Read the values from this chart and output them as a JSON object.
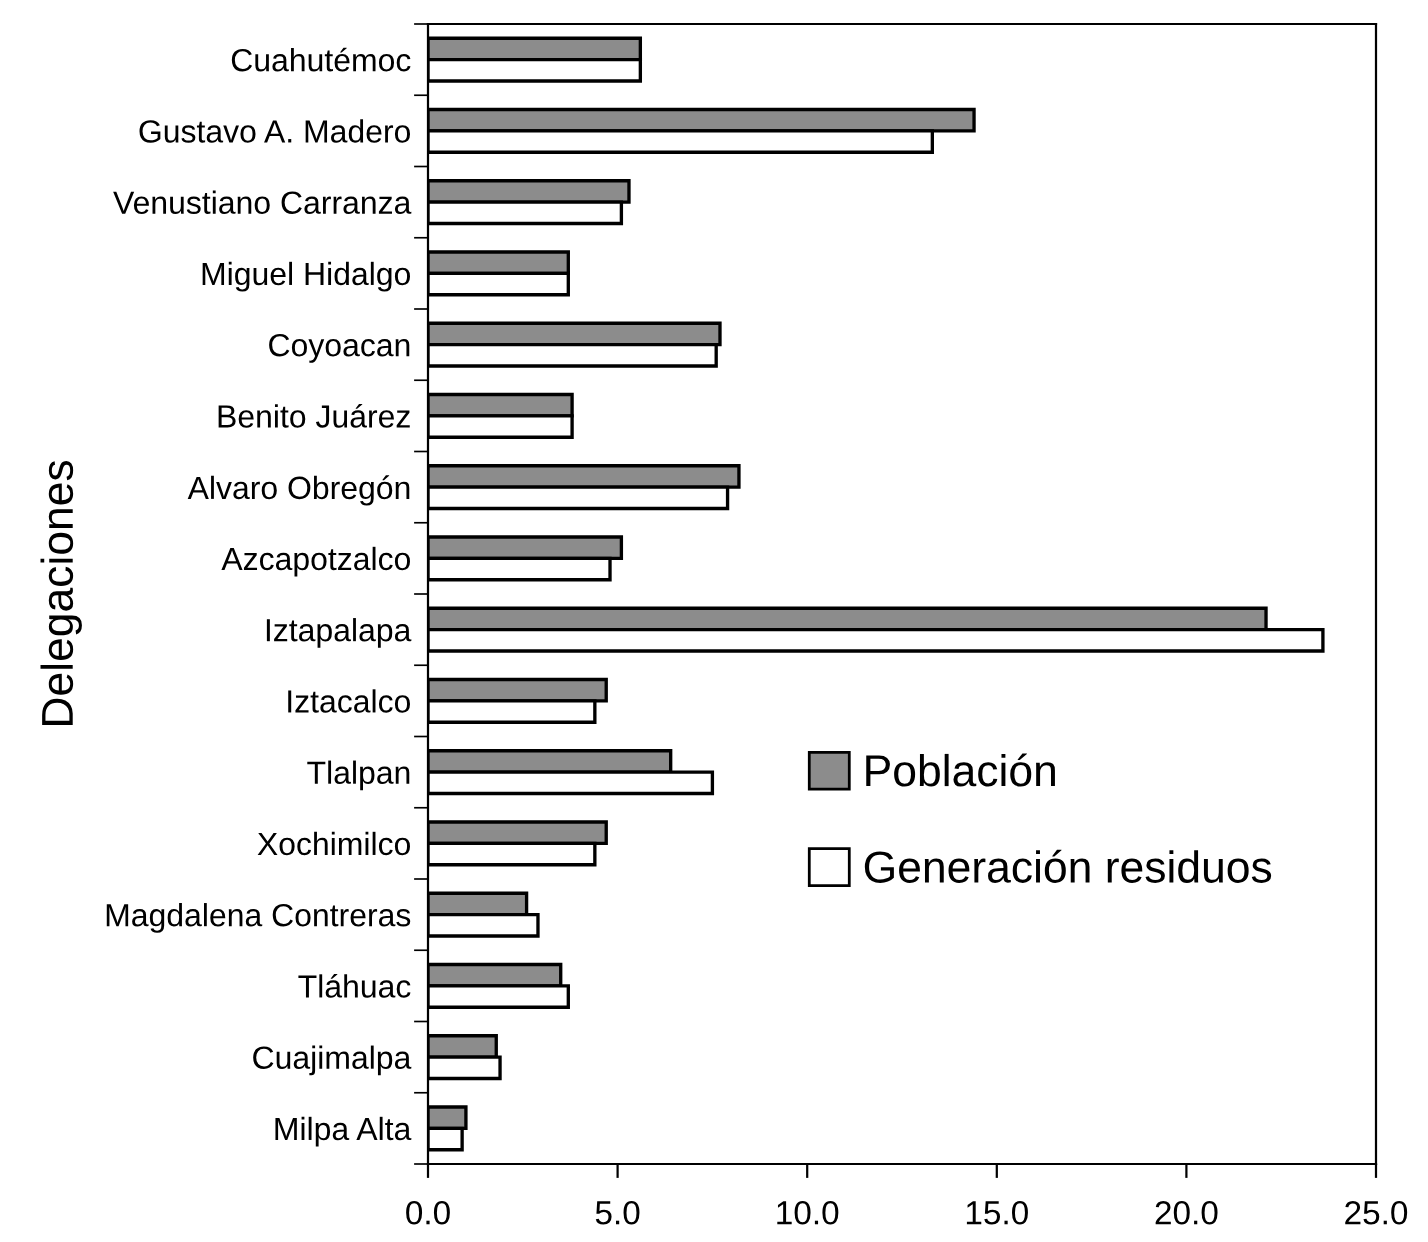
{
  "chart_data": {
    "type": "bar",
    "orientation": "horizontal",
    "ylabel": "Delegaciones",
    "categories": [
      "Cuahutémoc",
      "Gustavo A. Madero",
      "Venustiano Carranza",
      "Miguel Hidalgo",
      "Coyoacan",
      "Benito Juárez",
      "Alvaro Obregón",
      "Azcapotzalco",
      "Iztapalapa",
      "Iztacalco",
      "Tlalpan",
      "Xochimilco",
      "Magdalena Contreras",
      "Tláhuac",
      "Cuajimalpa",
      "Milpa Alta"
    ],
    "series": [
      {
        "name": "Población",
        "color": "#8c8c8c",
        "values": [
          5.6,
          14.4,
          5.3,
          3.7,
          7.7,
          3.8,
          8.2,
          5.1,
          22.1,
          4.7,
          6.4,
          4.7,
          2.6,
          3.5,
          1.8,
          1.0
        ]
      },
      {
        "name": "Generación residuos",
        "color": "#ffffff",
        "values": [
          5.6,
          13.3,
          5.1,
          3.7,
          7.6,
          3.8,
          7.9,
          4.8,
          23.6,
          4.4,
          7.5,
          4.4,
          2.9,
          3.7,
          1.9,
          0.9
        ]
      }
    ],
    "xlim": [
      0,
      25
    ],
    "xticks": [
      {
        "value": 0,
        "label": "0.0"
      },
      {
        "value": 5,
        "label": "5.0"
      },
      {
        "value": 10,
        "label": "10.0"
      },
      {
        "value": 15,
        "label": "15.0"
      },
      {
        "value": 20,
        "label": "20.0"
      },
      {
        "value": 25,
        "label": "25.0"
      }
    ],
    "grid": false,
    "legend": "center right"
  }
}
